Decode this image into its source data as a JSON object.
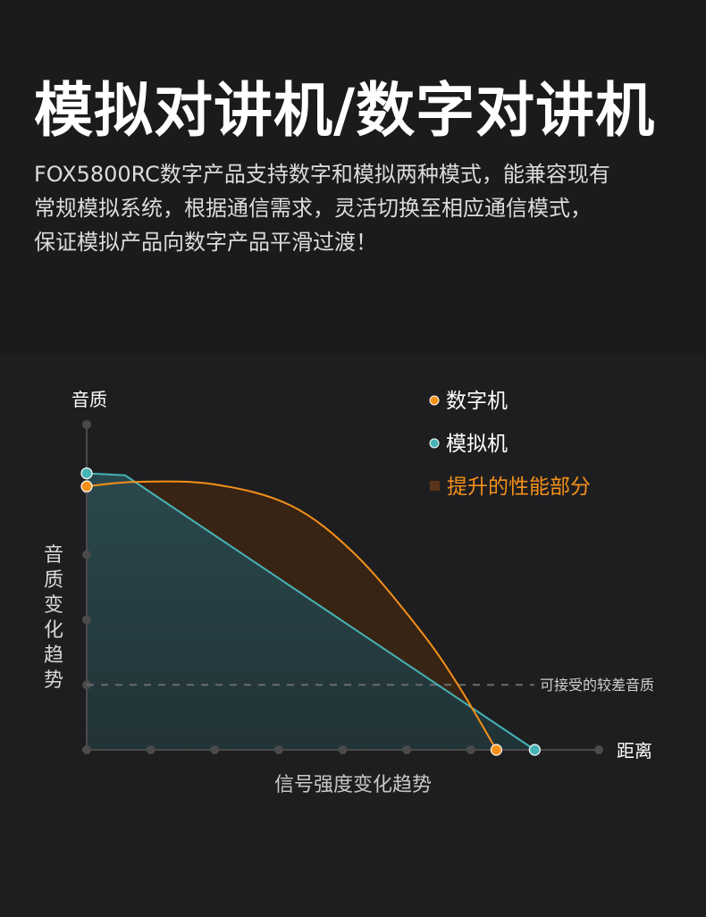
{
  "header": {
    "title": "模拟对讲机/数字对讲机",
    "description_lines": [
      "FOX5800RC数字产品支持数字和模拟两种模式，能兼容现有",
      "常规模拟系统，根据通信需求，灵活切换至相应通信模式，",
      "保证模拟产品向数字产品平滑过渡！"
    ]
  },
  "colors": {
    "digital": "#f39019",
    "analog": "#46b3b5",
    "improvement": "#3a2514",
    "axis": "#4a4a4c",
    "threshold": "#6a6a6c"
  },
  "legend": {
    "digital": "数字机",
    "analog": "模拟机",
    "improvement": "提升的性能部分"
  },
  "chart_data": {
    "type": "line",
    "title": "",
    "y_axis_top_label": "音质",
    "y_axis_side_label": "音质变化趋势",
    "x_axis_end_label": "距离",
    "x_axis_label": "信号强度变化趋势",
    "threshold_label": "可接受的较差音质",
    "threshold_value": 1.0,
    "xlim": [
      0,
      8
    ],
    "ylim": [
      0,
      5
    ],
    "legend_position": "top-right",
    "grid": false,
    "series": [
      {
        "name": "数字机",
        "key": "digital",
        "points": [
          [
            0,
            4.05
          ],
          [
            0.8,
            4.12
          ],
          [
            2.0,
            4.08
          ],
          [
            3.2,
            3.75
          ],
          [
            4.2,
            3.0
          ],
          [
            5.2,
            1.85
          ],
          [
            5.8,
            1.0
          ],
          [
            6.4,
            0
          ]
        ]
      },
      {
        "name": "模拟机",
        "key": "analog",
        "points": [
          [
            0,
            4.25
          ],
          [
            0.6,
            4.22
          ],
          [
            7.0,
            0
          ]
        ]
      }
    ]
  }
}
